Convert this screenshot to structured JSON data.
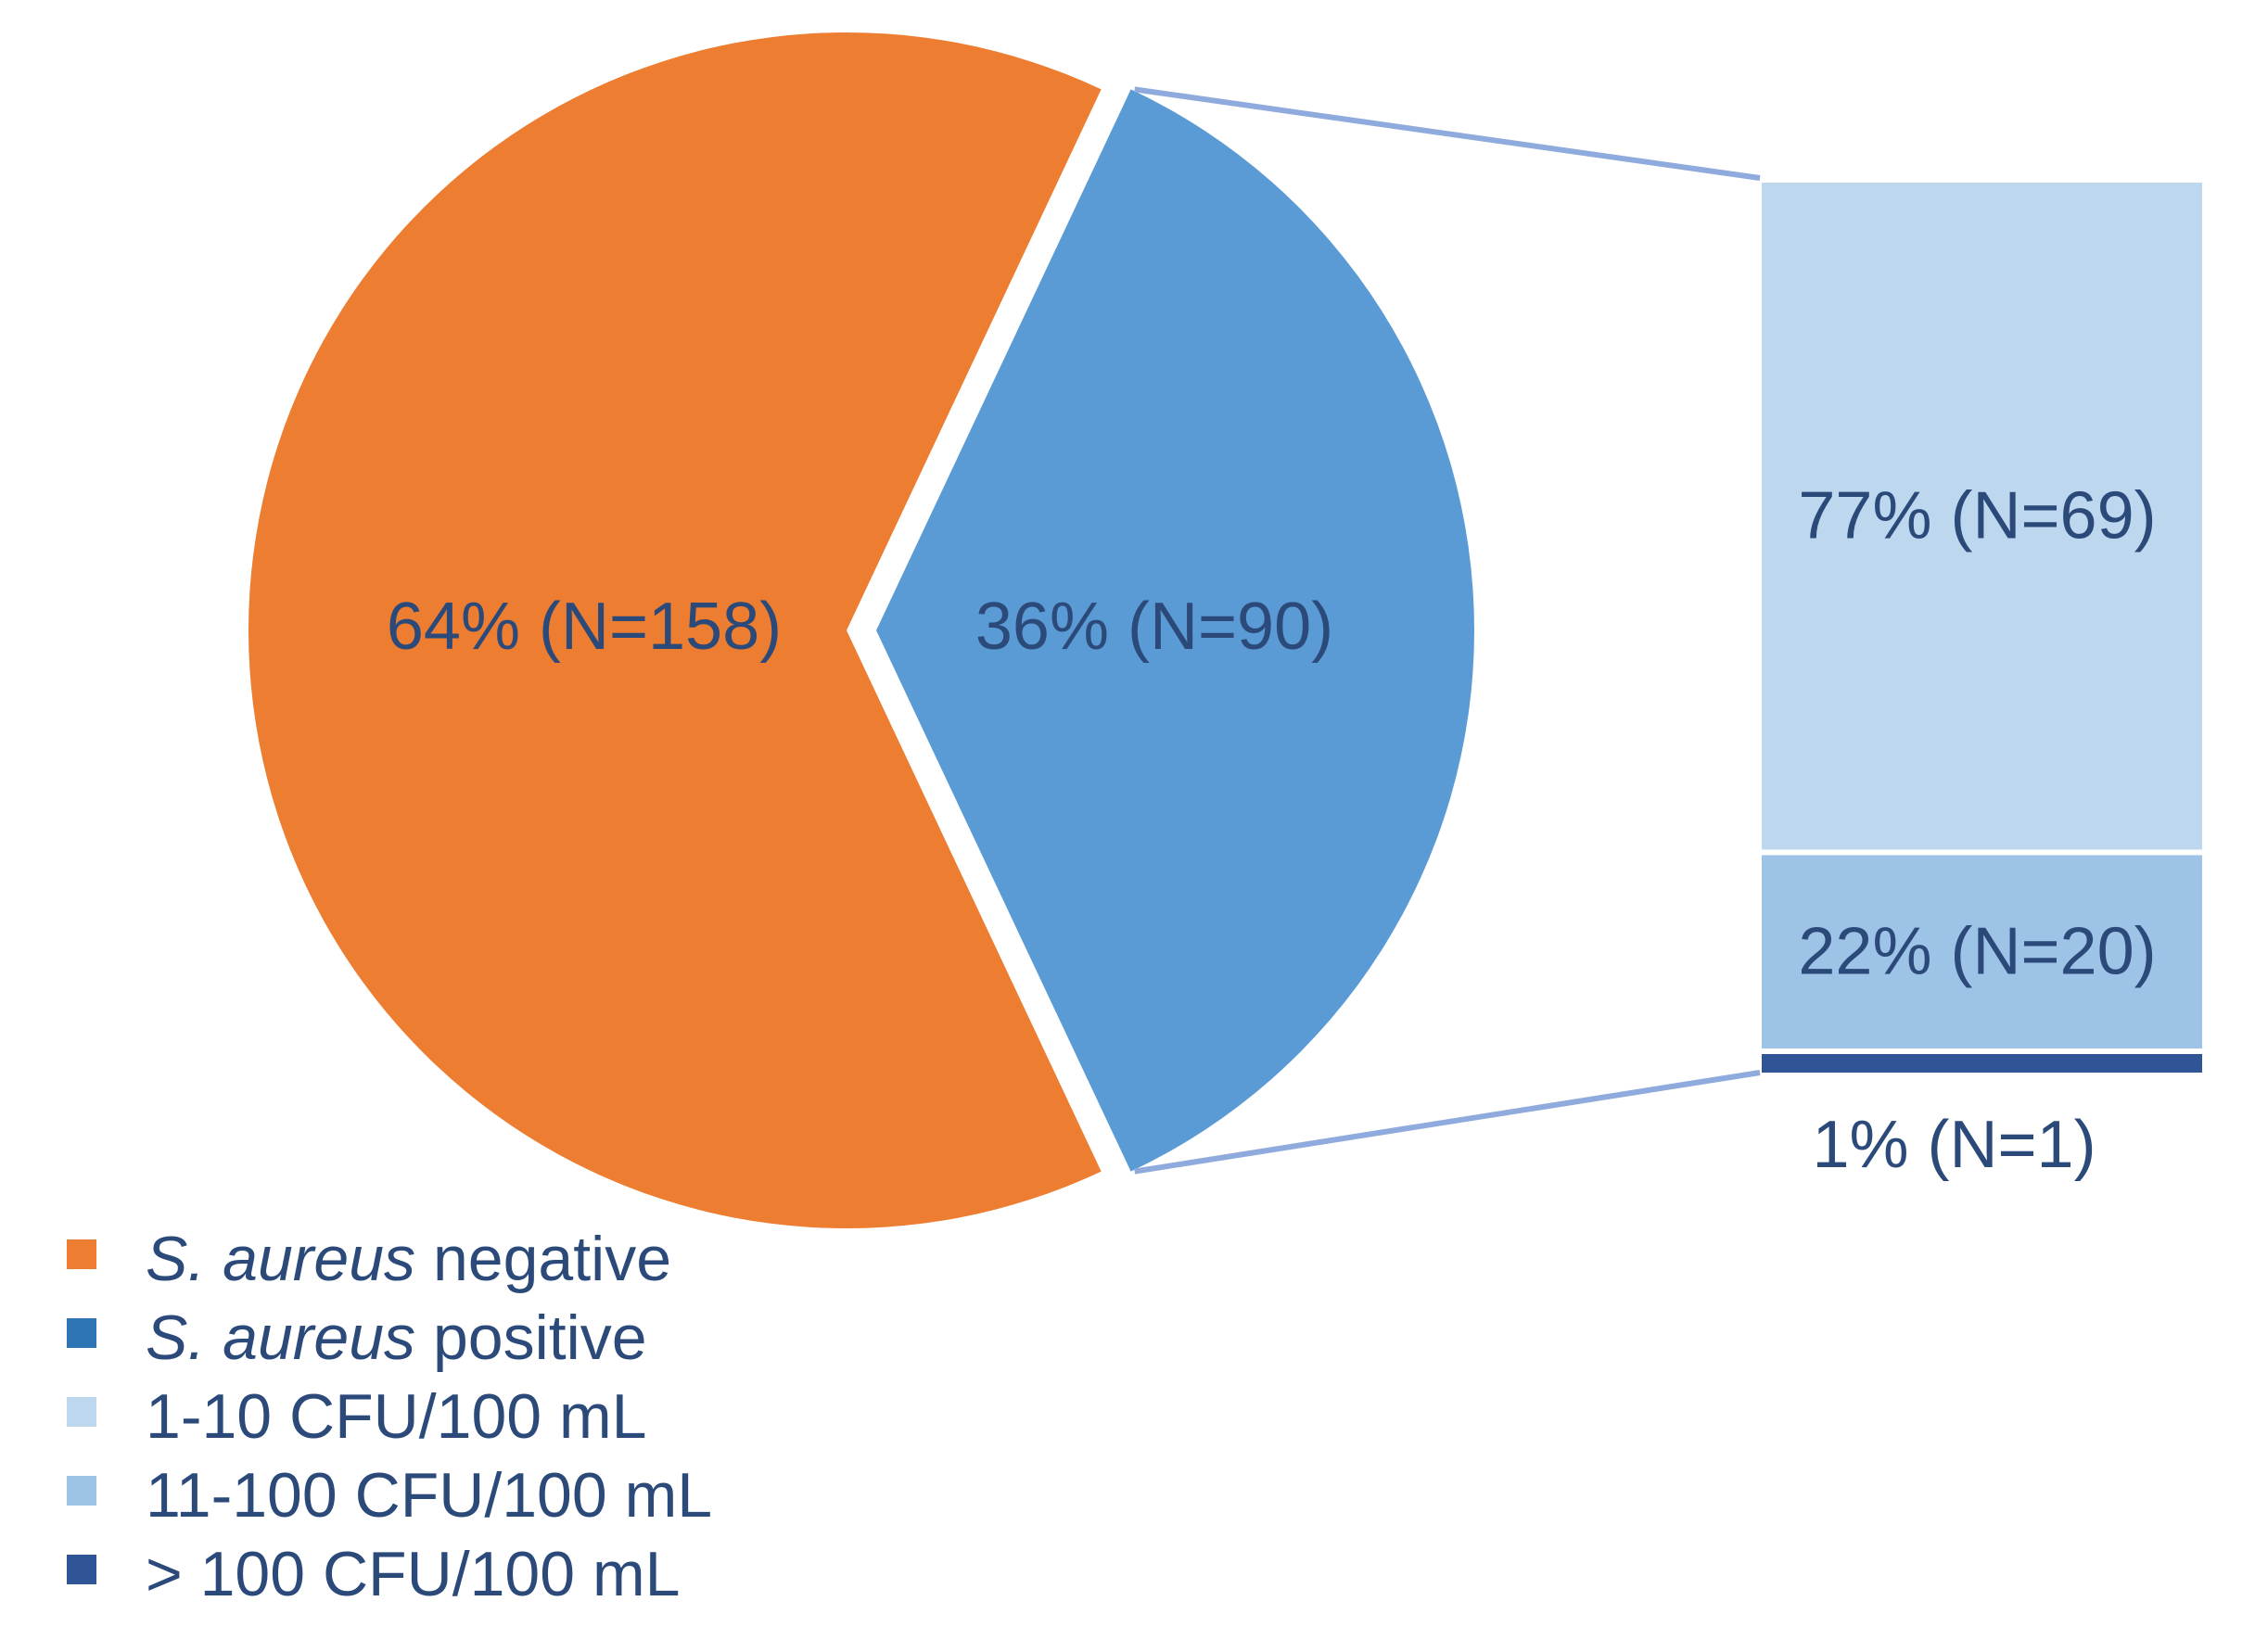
{
  "chart_data": {
    "type": "bar-of-pie",
    "pie": {
      "slices": [
        {
          "name": "S. aureus negative",
          "percent": 64,
          "n": 158,
          "label": "64% (N=158)",
          "color": "#ed7d31"
        },
        {
          "name": "S. aureus positive",
          "percent": 36,
          "n": 90,
          "label": "36% (N=90)",
          "color": "#5b9bd5"
        }
      ]
    },
    "bar": {
      "source_slice": "S. aureus positive",
      "segments": [
        {
          "name": "1-10 CFU/100 mL",
          "percent": 77,
          "n": 69,
          "label": "77% (N=69)",
          "color": "#bdd7ee"
        },
        {
          "name": "11-100 CFU/100 mL",
          "percent": 22,
          "n": 20,
          "label": "22% (N=20)",
          "color": "#9dc3e6"
        },
        {
          "name": "> 100 CFU/100 mL",
          "percent": 1,
          "n": 1,
          "label": "1% (N=1)",
          "color": "#2f5597"
        }
      ]
    },
    "connector_color": "#8faadc",
    "legend": {
      "position": "bottom-left",
      "items": [
        {
          "italic": "S. aureus",
          "text": " negative",
          "color": "#ed7d31"
        },
        {
          "italic": "S. aureus",
          "text": " positive",
          "color": "#2e75b6"
        },
        {
          "italic": "",
          "text": "1-10   CFU/100 mL",
          "color": "#bdd7ee"
        },
        {
          "italic": "",
          "text": "11-100 CFU/100 mL",
          "color": "#9dc3e6"
        },
        {
          "italic": "",
          "text": "> 100 CFU/100 mL",
          "color": "#2f5597"
        }
      ]
    }
  }
}
